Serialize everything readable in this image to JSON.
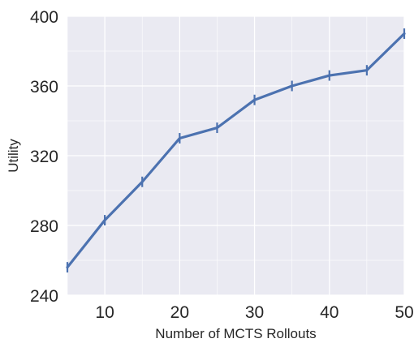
{
  "chart_data": {
    "type": "line",
    "title": "",
    "xlabel": "Number of MCTS Rollouts",
    "ylabel": "Utility",
    "xlim": [
      5,
      50
    ],
    "ylim": [
      240,
      400
    ],
    "x_ticks": [
      10,
      20,
      30,
      40,
      50
    ],
    "y_ticks": [
      240,
      280,
      320,
      360,
      400
    ],
    "grid": true,
    "legend": "none",
    "colors": {
      "background": "#eaeaf2",
      "grid": "#ffffff",
      "line": "#4c72b0"
    },
    "series": [
      {
        "x": [
          5,
          10,
          15,
          20,
          25,
          30,
          35,
          40,
          45,
          50
        ],
        "y": [
          256,
          283,
          305,
          330,
          336,
          352,
          360,
          366,
          369,
          390
        ],
        "err": [
          3,
          3,
          3,
          3,
          3,
          3,
          3,
          3,
          3,
          3
        ]
      }
    ]
  }
}
